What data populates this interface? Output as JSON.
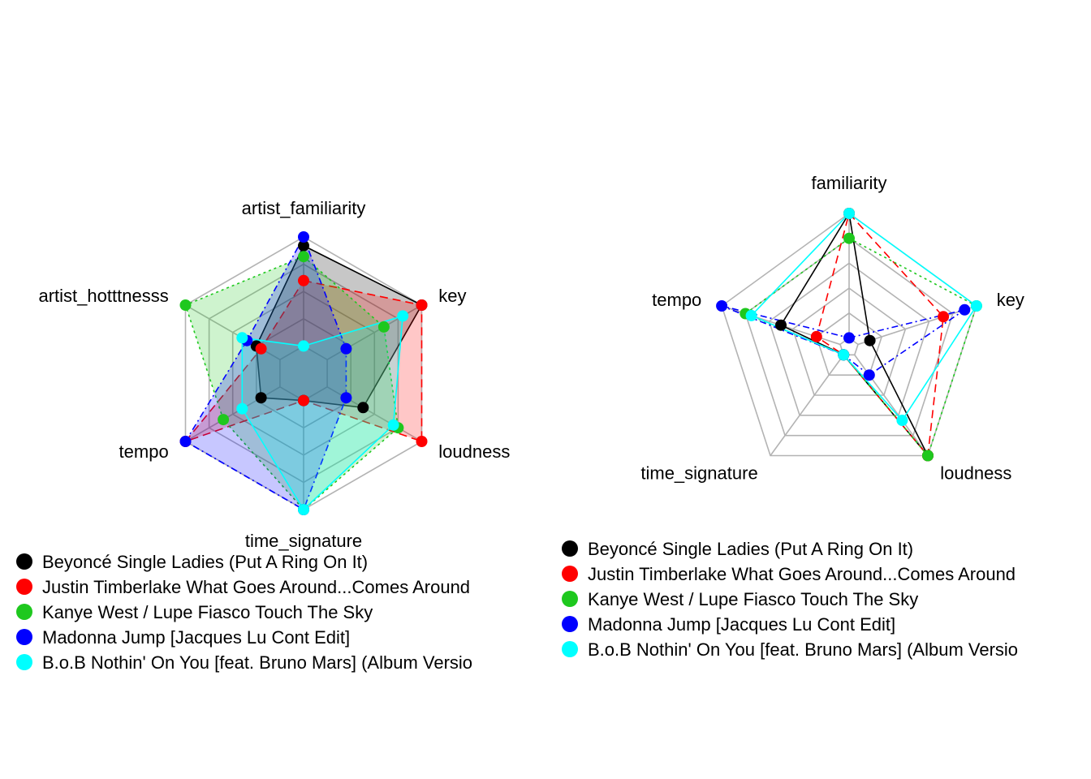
{
  "chart_data": [
    {
      "type": "radar",
      "axes": [
        "artist_familiarity",
        "key",
        "loudness",
        "time_signature",
        "tempo",
        "artist_hotttnesss"
      ],
      "rmax": 1,
      "grid_levels": 4,
      "filled": true,
      "series": [
        {
          "name": "Beyoncé Single Ladies (Put A Ring On It)",
          "color": "#000000",
          "dash": "",
          "values": [
            0.92,
            1.0,
            0.38,
            0.0,
            0.2,
            0.25
          ]
        },
        {
          "name": "Justin Timberlake What Goes Around...Comes Around",
          "color": "#ff0000",
          "dash": "10 6",
          "values": [
            0.6,
            1.0,
            1.0,
            0.0,
            1.0,
            0.2
          ]
        },
        {
          "name": "Kanye West / Lupe Fiasco Touch The Sky",
          "color": "#1ec81e",
          "dash": "3 4",
          "values": [
            0.82,
            0.6,
            0.75,
            1.0,
            0.6,
            1.0
          ]
        },
        {
          "name": "Madonna Jump [Jacques Lu Cont Edit]",
          "color": "#0000ff",
          "dash": "8 4 2 4",
          "values": [
            1.0,
            0.2,
            0.2,
            1.0,
            1.0,
            0.35
          ]
        },
        {
          "name": "B.o.B Nothin' On You [feat. Bruno Mars] (Album Versio",
          "color": "#00ffff",
          "dash": "",
          "values": [
            0.0,
            0.8,
            0.7,
            1.0,
            0.4,
            0.4
          ]
        }
      ]
    },
    {
      "type": "radar",
      "axes": [
        "familiarity",
        "key",
        "loudness",
        "time_signature",
        "tempo"
      ],
      "rmax": 1,
      "grid_levels": 5,
      "filled": false,
      "series": [
        {
          "name": "Beyoncé Single Ladies (Put A Ring On It)",
          "color": "#000000",
          "dash": "",
          "values": [
            1.0,
            0.1,
            1.0,
            0.0,
            0.5
          ]
        },
        {
          "name": "Justin Timberlake What Goes Around...Comes Around",
          "color": "#ff0000",
          "dash": "10 6",
          "values": [
            1.0,
            0.72,
            1.0,
            0.0,
            0.2
          ]
        },
        {
          "name": "Kanye West / Lupe Fiasco Touch The Sky",
          "color": "#1ec81e",
          "dash": "3 4",
          "values": [
            0.8,
            1.0,
            1.0,
            0.0,
            0.8
          ]
        },
        {
          "name": "Madonna Jump [Jacques Lu Cont Edit]",
          "color": "#0000ff",
          "dash": "8 4 2 4",
          "values": [
            0.0,
            0.9,
            0.2,
            0.0,
            1.0
          ]
        },
        {
          "name": "B.o.B Nothin' On You [feat. Bruno Mars] (Album Versio",
          "color": "#00ffff",
          "dash": "",
          "values": [
            1.0,
            1.0,
            0.65,
            0.0,
            0.75
          ]
        }
      ]
    }
  ]
}
